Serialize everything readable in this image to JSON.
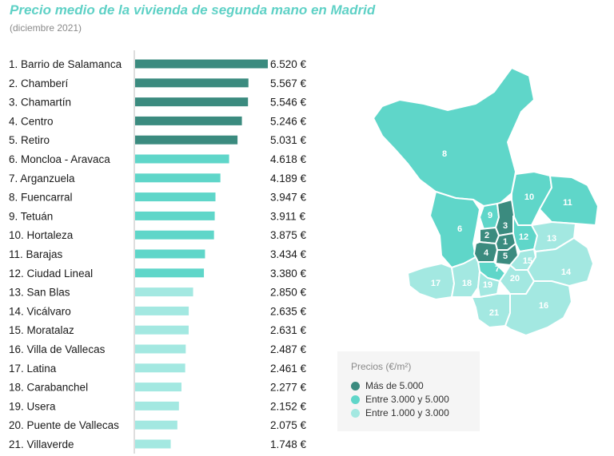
{
  "header": {
    "title": "Precio medio de la vivienda de segunda mano en Madrid",
    "subtitle": "(diciembre 2021)"
  },
  "legend": {
    "title": "Precios (€/m²)",
    "items": [
      {
        "label": "Más de 5.000",
        "color": "#3b8b7f"
      },
      {
        "label": "Entre 3.000 y 5.000",
        "color": "#5fd6c9"
      },
      {
        "label": "Entre 1.000 y 3.000",
        "color": "#a3e8e1"
      }
    ]
  },
  "chart_data": {
    "type": "bar",
    "orientation": "horizontal",
    "title": "Precio medio de la vivienda de segunda mano en Madrid",
    "subtitle": "(diciembre 2021)",
    "categories": [
      "1. Barrio de Salamanca",
      "2. Chamberí",
      "3. Chamartín",
      "4. Centro",
      "5. Retiro",
      "6. Moncloa - Aravaca",
      "7. Arganzuela",
      "8. Fuencarral",
      "9. Tetuán",
      "10. Hortaleza",
      "11. Barajas",
      "12. Ciudad Lineal",
      "13. San Blas",
      "14. Vicálvaro",
      "15. Moratalaz",
      "16. Villa de Vallecas",
      "17. Latina",
      "18. Carabanchel",
      "19. Usera",
      "20. Puente de Vallecas",
      "21. Villaverde"
    ],
    "values": [
      6520,
      5567,
      5546,
      5246,
      5031,
      4618,
      4189,
      3947,
      3911,
      3875,
      3434,
      3380,
      2850,
      2635,
      2631,
      2487,
      2461,
      2277,
      2152,
      2075,
      1748
    ],
    "value_labels": [
      "6.520 €",
      "5.567 €",
      "5.546 €",
      "5.246 €",
      "5.031 €",
      "4.618 €",
      "4.189 €",
      "3.947 €",
      "3.911 €",
      "3.875 €",
      "3.434 €",
      "3.380 €",
      "2.850 €",
      "2.635 €",
      "2.631 €",
      "2.487 €",
      "2.461 €",
      "2.277 €",
      "2.152 €",
      "2.075 €",
      "1.748 €"
    ],
    "xlim": [
      0,
      6520
    ],
    "grid": false,
    "colors": {
      "high": "#3b8b7f",
      "mid": "#5fd6c9",
      "low": "#a3e8e1"
    },
    "thresholds": [
      5000,
      3000
    ]
  },
  "map": {
    "district_numbers": [
      "1",
      "2",
      "3",
      "4",
      "5",
      "6",
      "7",
      "8",
      "9",
      "10",
      "11",
      "12",
      "13",
      "14",
      "15",
      "16",
      "17",
      "18",
      "19",
      "20",
      "21"
    ]
  }
}
